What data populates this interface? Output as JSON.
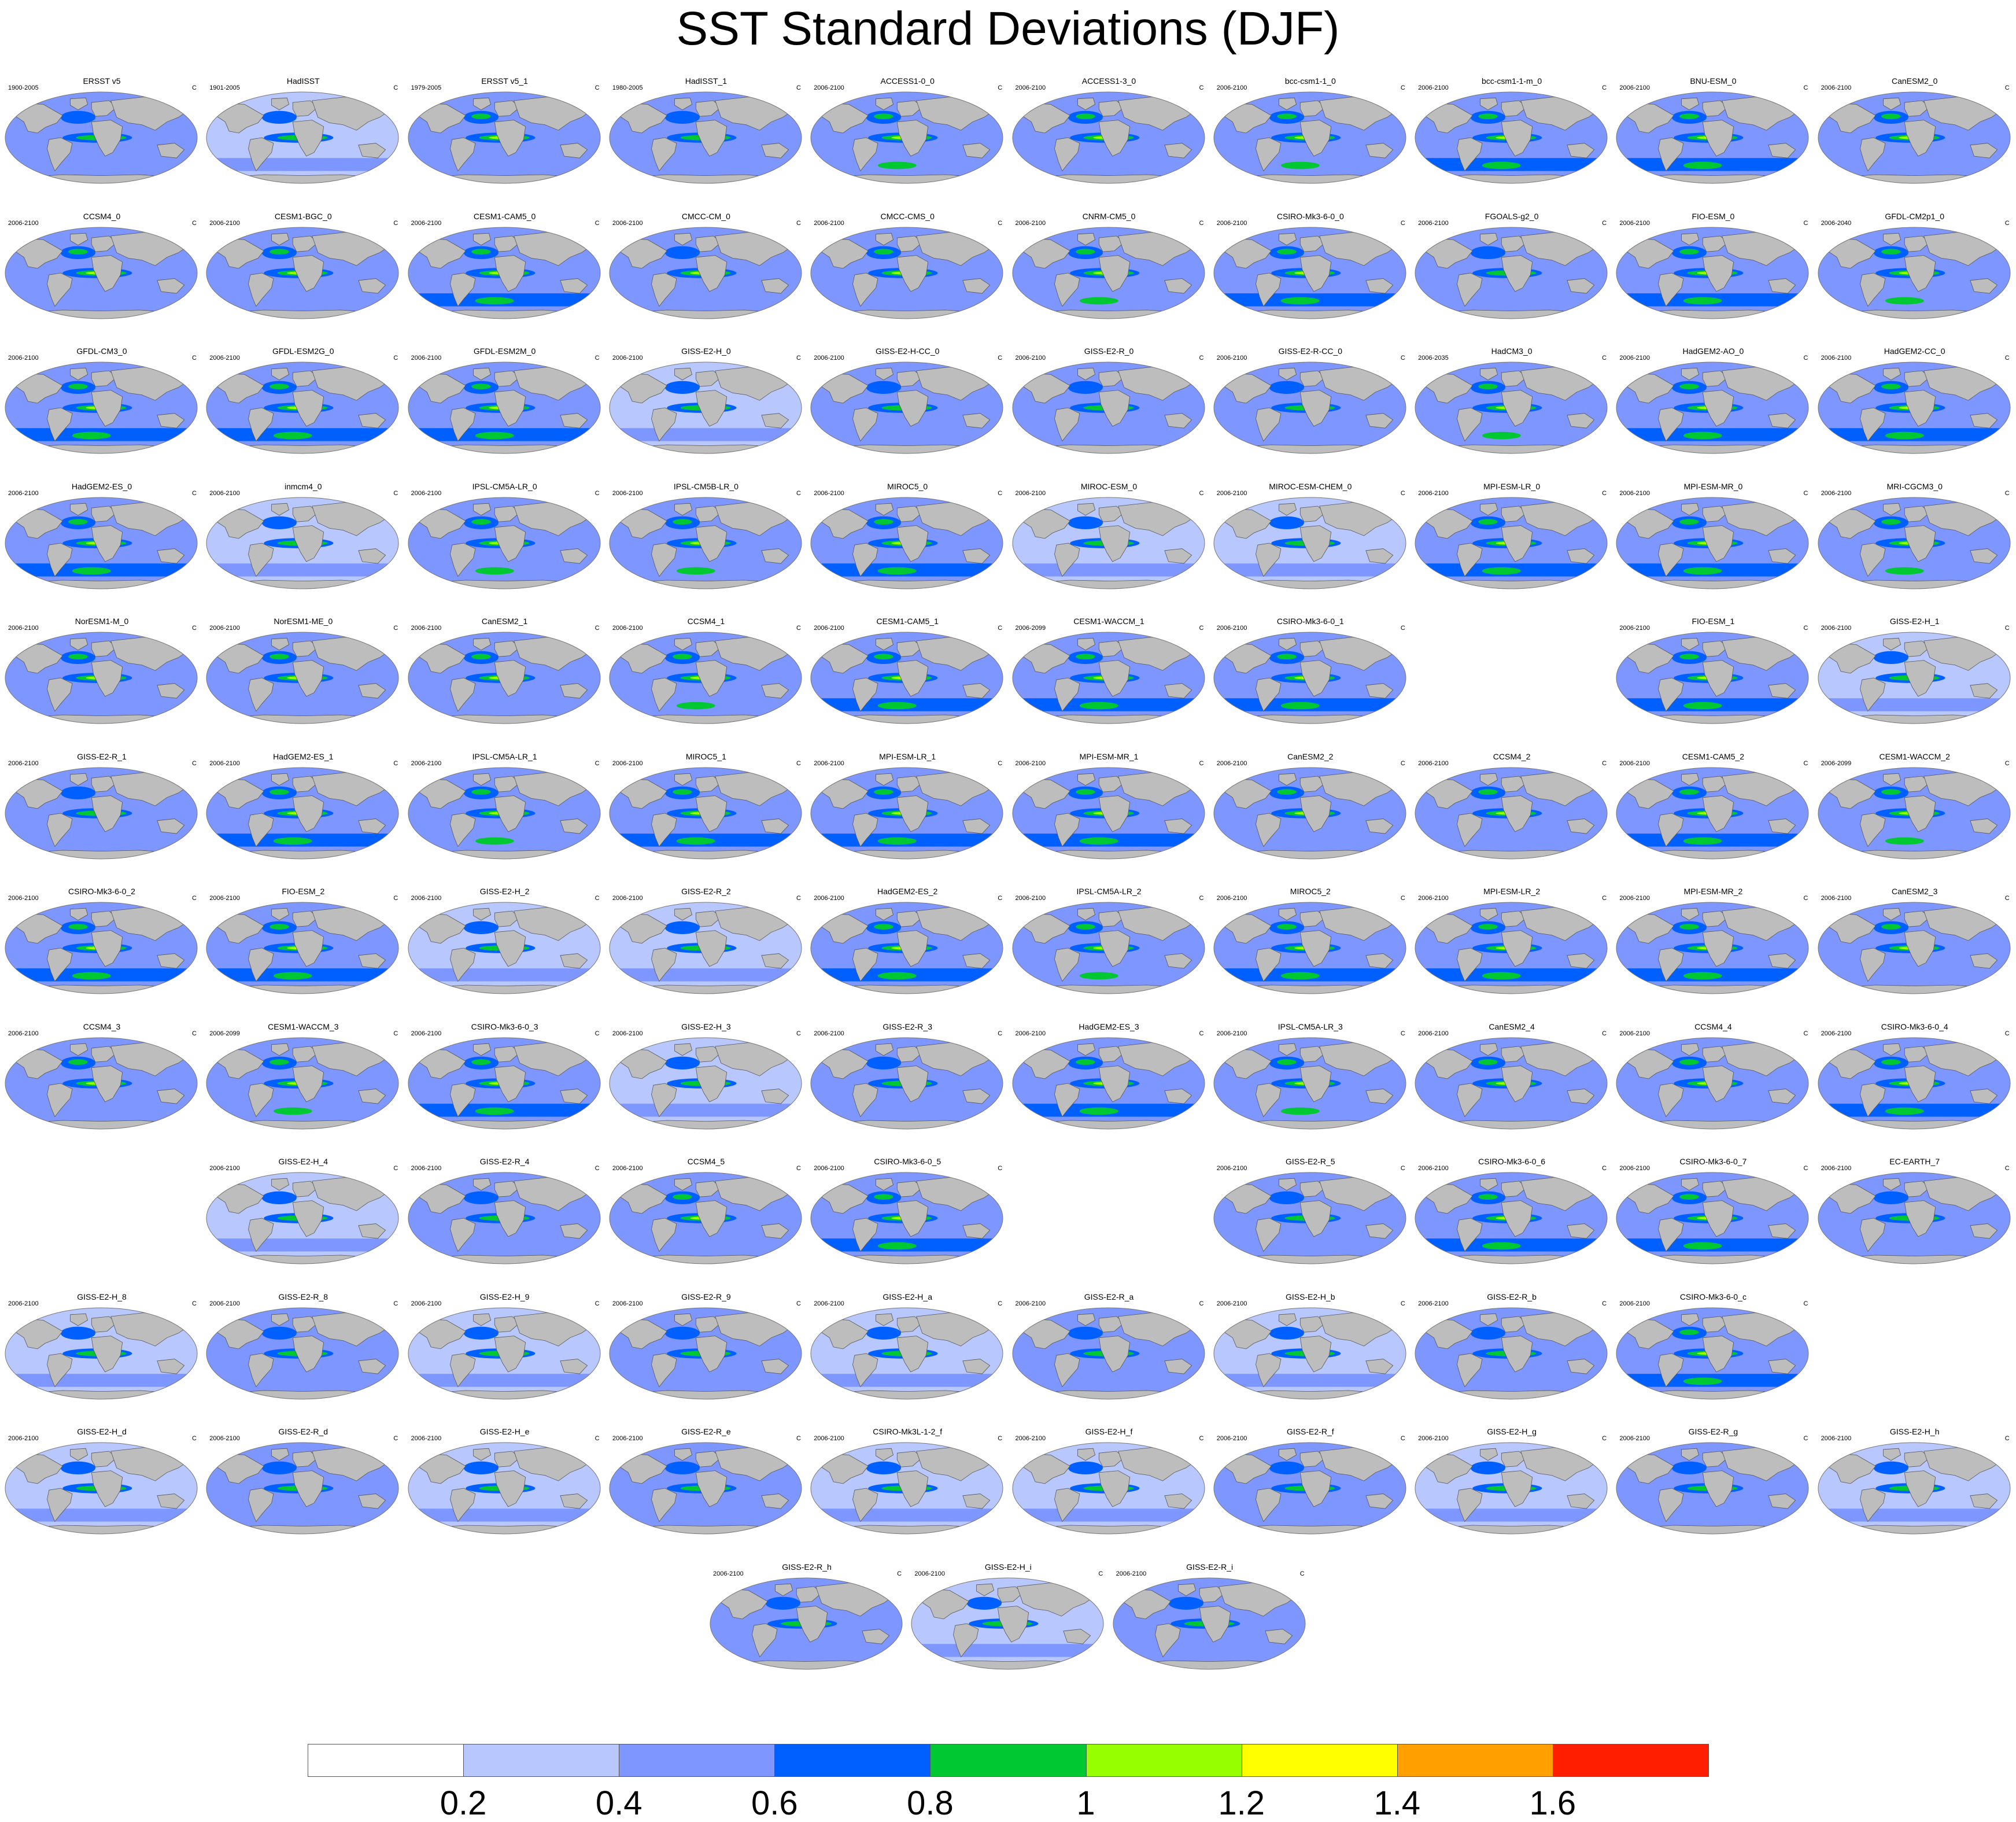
{
  "title": "SST Standard Deviations (DJF)",
  "unit": "C",
  "colors": {
    "land": "#bdbdbd",
    "coast": "#555555"
  },
  "colorbar": {
    "colors": [
      "#ffffff",
      "#b8c8ff",
      "#7e96ff",
      "#0060ff",
      "#00c832",
      "#96ff00",
      "#ffff00",
      "#ffa000",
      "#ff1e00"
    ],
    "labels": [
      "0.2",
      "0.4",
      "0.6",
      "0.8",
      "1",
      "1.2",
      "1.4",
      "1.6"
    ]
  },
  "panels": [
    {
      "row": 0,
      "col": 0,
      "name": "ERSST v5",
      "period": "1900-2005",
      "unit": "C",
      "intensity": 0.45
    },
    {
      "row": 0,
      "col": 1,
      "name": "HadISST",
      "period": "1901-2005",
      "unit": "C",
      "intensity": 0.3
    },
    {
      "row": 0,
      "col": 2,
      "name": "ERSST v5_1",
      "period": "1979-2005",
      "unit": "C",
      "intensity": 0.55
    },
    {
      "row": 0,
      "col": 3,
      "name": "HadISST_1",
      "period": "1980-2005",
      "unit": "C",
      "intensity": 0.45
    },
    {
      "row": 0,
      "col": 4,
      "name": "ACCESS1-0_0",
      "period": "2006-2100",
      "unit": "C",
      "intensity": 0.6
    },
    {
      "row": 0,
      "col": 5,
      "name": "ACCESS1-3_0",
      "period": "2006-2100",
      "unit": "C",
      "intensity": 0.55
    },
    {
      "row": 0,
      "col": 6,
      "name": "bcc-csm1-1_0",
      "period": "2006-2100",
      "unit": "C",
      "intensity": 0.6
    },
    {
      "row": 0,
      "col": 7,
      "name": "bcc-csm1-1-m_0",
      "period": "2006-2100",
      "unit": "C",
      "intensity": 0.7
    },
    {
      "row": 0,
      "col": 8,
      "name": "BNU-ESM_0",
      "period": "2006-2100",
      "unit": "C",
      "intensity": 0.8
    },
    {
      "row": 0,
      "col": 9,
      "name": "CanESM2_0",
      "period": "2006-2100",
      "unit": "C",
      "intensity": 0.55
    },
    {
      "row": 1,
      "col": 0,
      "name": "CCSM4_0",
      "period": "2006-2100",
      "unit": "C",
      "intensity": 0.55
    },
    {
      "row": 1,
      "col": 1,
      "name": "CESM1-BGC_0",
      "period": "2006-2100",
      "unit": "C",
      "intensity": 0.55
    },
    {
      "row": 1,
      "col": 2,
      "name": "CESM1-CAM5_0",
      "period": "2006-2100",
      "unit": "C",
      "intensity": 0.75
    },
    {
      "row": 1,
      "col": 3,
      "name": "CMCC-CM_0",
      "period": "2006-2100",
      "unit": "C",
      "intensity": 0.5
    },
    {
      "row": 1,
      "col": 4,
      "name": "CMCC-CMS_0",
      "period": "2006-2100",
      "unit": "C",
      "intensity": 0.55
    },
    {
      "row": 1,
      "col": 5,
      "name": "CNRM-CM5_0",
      "period": "2006-2100",
      "unit": "C",
      "intensity": 0.6
    },
    {
      "row": 1,
      "col": 6,
      "name": "CSIRO-Mk3-6-0_0",
      "period": "2006-2100",
      "unit": "C",
      "intensity": 0.7
    },
    {
      "row": 1,
      "col": 7,
      "name": "FGOALS-g2_0",
      "period": "2006-2100",
      "unit": "C",
      "intensity": 0.45
    },
    {
      "row": 1,
      "col": 8,
      "name": "FIO-ESM_0",
      "period": "2006-2100",
      "unit": "C",
      "intensity": 0.75
    },
    {
      "row": 1,
      "col": 9,
      "name": "GFDL-CM2p1_0",
      "period": "2006-2040",
      "unit": "C",
      "intensity": 0.6
    },
    {
      "row": 2,
      "col": 0,
      "name": "GFDL-CM3_0",
      "period": "2006-2100",
      "unit": "C",
      "intensity": 0.75
    },
    {
      "row": 2,
      "col": 1,
      "name": "GFDL-ESM2G_0",
      "period": "2006-2100",
      "unit": "C",
      "intensity": 0.65
    },
    {
      "row": 2,
      "col": 2,
      "name": "GFDL-ESM2M_0",
      "period": "2006-2100",
      "unit": "C",
      "intensity": 0.7
    },
    {
      "row": 2,
      "col": 3,
      "name": "GISS-E2-H_0",
      "period": "2006-2100",
      "unit": "C",
      "intensity": 0.35
    },
    {
      "row": 2,
      "col": 4,
      "name": "GISS-E2-H-CC_0",
      "period": "2006-2100",
      "unit": "C",
      "intensity": 0.4
    },
    {
      "row": 2,
      "col": 5,
      "name": "GISS-E2-R_0",
      "period": "2006-2100",
      "unit": "C",
      "intensity": 0.4
    },
    {
      "row": 2,
      "col": 6,
      "name": "GISS-E2-R-CC_0",
      "period": "2006-2100",
      "unit": "C",
      "intensity": 0.4
    },
    {
      "row": 2,
      "col": 7,
      "name": "HadCM3_0",
      "period": "2006-2035",
      "unit": "C",
      "intensity": 0.6
    },
    {
      "row": 2,
      "col": 8,
      "name": "HadGEM2-AO_0",
      "period": "2006-2100",
      "unit": "C",
      "intensity": 0.65
    },
    {
      "row": 2,
      "col": 9,
      "name": "HadGEM2-CC_0",
      "period": "2006-2100",
      "unit": "C",
      "intensity": 0.65
    },
    {
      "row": 3,
      "col": 0,
      "name": "HadGEM2-ES_0",
      "period": "2006-2100",
      "unit": "C",
      "intensity": 0.65
    },
    {
      "row": 3,
      "col": 1,
      "name": "inmcm4_0",
      "period": "2006-2100",
      "unit": "C",
      "intensity": 0.25
    },
    {
      "row": 3,
      "col": 2,
      "name": "IPSL-CM5A-LR_0",
      "period": "2006-2100",
      "unit": "C",
      "intensity": 0.6
    },
    {
      "row": 3,
      "col": 3,
      "name": "IPSL-CM5B-LR_0",
      "period": "2006-2100",
      "unit": "C",
      "intensity": 0.6
    },
    {
      "row": 3,
      "col": 4,
      "name": "MIROC5_0",
      "period": "2006-2100",
      "unit": "C",
      "intensity": 0.85
    },
    {
      "row": 3,
      "col": 5,
      "name": "MIROC-ESM_0",
      "period": "2006-2100",
      "unit": "C",
      "intensity": 0.35
    },
    {
      "row": 3,
      "col": 6,
      "name": "MIROC-ESM-CHEM_0",
      "period": "2006-2100",
      "unit": "C",
      "intensity": 0.35
    },
    {
      "row": 3,
      "col": 7,
      "name": "MPI-ESM-LR_0",
      "period": "2006-2100",
      "unit": "C",
      "intensity": 0.7
    },
    {
      "row": 3,
      "col": 8,
      "name": "MPI-ESM-MR_0",
      "period": "2006-2100",
      "unit": "C",
      "intensity": 0.65
    },
    {
      "row": 3,
      "col": 9,
      "name": "MRI-CGCM3_0",
      "period": "2006-2100",
      "unit": "C",
      "intensity": 0.6
    },
    {
      "row": 4,
      "col": 0,
      "name": "NorESM1-M_0",
      "period": "2006-2100",
      "unit": "C",
      "intensity": 0.55
    },
    {
      "row": 4,
      "col": 1,
      "name": "NorESM1-ME_0",
      "period": "2006-2100",
      "unit": "C",
      "intensity": 0.55
    },
    {
      "row": 4,
      "col": 2,
      "name": "CanESM2_1",
      "period": "2006-2100",
      "unit": "C",
      "intensity": 0.55
    },
    {
      "row": 4,
      "col": 3,
      "name": "CCSM4_1",
      "period": "2006-2100",
      "unit": "C",
      "intensity": 0.6
    },
    {
      "row": 4,
      "col": 4,
      "name": "CESM1-CAM5_1",
      "period": "2006-2100",
      "unit": "C",
      "intensity": 0.7
    },
    {
      "row": 4,
      "col": 5,
      "name": "CESM1-WACCM_1",
      "period": "2006-2099",
      "unit": "C",
      "intensity": 0.7
    },
    {
      "row": 4,
      "col": 6,
      "name": "CSIRO-Mk3-6-0_1",
      "period": "2006-2100",
      "unit": "C",
      "intensity": 0.7
    },
    {
      "row": 4,
      "col": 8,
      "name": "FIO-ESM_1",
      "period": "2006-2100",
      "unit": "C",
      "intensity": 0.75
    },
    {
      "row": 4,
      "col": 9,
      "name": "GISS-E2-H_1",
      "period": "2006-2100",
      "unit": "C",
      "intensity": 0.35
    },
    {
      "row": 5,
      "col": 0,
      "name": "GISS-E2-R_1",
      "period": "2006-2100",
      "unit": "C",
      "intensity": 0.4
    },
    {
      "row": 5,
      "col": 1,
      "name": "HadGEM2-ES_1",
      "period": "2006-2100",
      "unit": "C",
      "intensity": 0.65
    },
    {
      "row": 5,
      "col": 2,
      "name": "IPSL-CM5A-LR_1",
      "period": "2006-2100",
      "unit": "C",
      "intensity": 0.6
    },
    {
      "row": 5,
      "col": 3,
      "name": "MIROC5_1",
      "period": "2006-2100",
      "unit": "C",
      "intensity": 0.75
    },
    {
      "row": 5,
      "col": 4,
      "name": "MPI-ESM-LR_1",
      "period": "2006-2100",
      "unit": "C",
      "intensity": 0.7
    },
    {
      "row": 5,
      "col": 5,
      "name": "MPI-ESM-MR_1",
      "period": "2006-2100",
      "unit": "C",
      "intensity": 0.65
    },
    {
      "row": 5,
      "col": 6,
      "name": "CanESM2_2",
      "period": "2006-2100",
      "unit": "C",
      "intensity": 0.55
    },
    {
      "row": 5,
      "col": 7,
      "name": "CCSM4_2",
      "period": "2006-2100",
      "unit": "C",
      "intensity": 0.55
    },
    {
      "row": 5,
      "col": 8,
      "name": "CESM1-CAM5_2",
      "period": "2006-2100",
      "unit": "C",
      "intensity": 0.7
    },
    {
      "row": 5,
      "col": 9,
      "name": "CESM1-WACCM_2",
      "period": "2006-2099",
      "unit": "C",
      "intensity": 0.6
    },
    {
      "row": 6,
      "col": 0,
      "name": "CSIRO-Mk3-6-0_2",
      "period": "2006-2100",
      "unit": "C",
      "intensity": 0.75
    },
    {
      "row": 6,
      "col": 1,
      "name": "FIO-ESM_2",
      "period": "2006-2100",
      "unit": "C",
      "intensity": 0.75
    },
    {
      "row": 6,
      "col": 2,
      "name": "GISS-E2-H_2",
      "period": "2006-2100",
      "unit": "C",
      "intensity": 0.35
    },
    {
      "row": 6,
      "col": 3,
      "name": "GISS-E2-R_2",
      "period": "2006-2100",
      "unit": "C",
      "intensity": 0.35
    },
    {
      "row": 6,
      "col": 4,
      "name": "HadGEM2-ES_2",
      "period": "2006-2100",
      "unit": "C",
      "intensity": 0.65
    },
    {
      "row": 6,
      "col": 5,
      "name": "IPSL-CM5A-LR_2",
      "period": "2006-2100",
      "unit": "C",
      "intensity": 0.6
    },
    {
      "row": 6,
      "col": 6,
      "name": "MIROC5_2",
      "period": "2006-2100",
      "unit": "C",
      "intensity": 0.85
    },
    {
      "row": 6,
      "col": 7,
      "name": "MPI-ESM-LR_2",
      "period": "2006-2100",
      "unit": "C",
      "intensity": 0.7
    },
    {
      "row": 6,
      "col": 8,
      "name": "MPI-ESM-MR_2",
      "period": "2006-2100",
      "unit": "C",
      "intensity": 0.65
    },
    {
      "row": 6,
      "col": 9,
      "name": "CanESM2_3",
      "period": "2006-2100",
      "unit": "C",
      "intensity": 0.55
    },
    {
      "row": 7,
      "col": 0,
      "name": "CCSM4_3",
      "period": "2006-2100",
      "unit": "C",
      "intensity": 0.55
    },
    {
      "row": 7,
      "col": 1,
      "name": "CESM1-WACCM_3",
      "period": "2006-2099",
      "unit": "C",
      "intensity": 0.6
    },
    {
      "row": 7,
      "col": 2,
      "name": "CSIRO-Mk3-6-0_3",
      "period": "2006-2100",
      "unit": "C",
      "intensity": 0.7
    },
    {
      "row": 7,
      "col": 3,
      "name": "GISS-E2-H_3",
      "period": "2006-2100",
      "unit": "C",
      "intensity": 0.35
    },
    {
      "row": 7,
      "col": 4,
      "name": "GISS-E2-R_3",
      "period": "2006-2100",
      "unit": "C",
      "intensity": 0.4
    },
    {
      "row": 7,
      "col": 5,
      "name": "HadGEM2-ES_3",
      "period": "2006-2100",
      "unit": "C",
      "intensity": 0.65
    },
    {
      "row": 7,
      "col": 6,
      "name": "IPSL-CM5A-LR_3",
      "period": "2006-2100",
      "unit": "C",
      "intensity": 0.6
    },
    {
      "row": 7,
      "col": 7,
      "name": "CanESM2_4",
      "period": "2006-2100",
      "unit": "C",
      "intensity": 0.55
    },
    {
      "row": 7,
      "col": 8,
      "name": "CCSM4_4",
      "period": "2006-2100",
      "unit": "C",
      "intensity": 0.55
    },
    {
      "row": 7,
      "col": 9,
      "name": "CSIRO-Mk3-6-0_4",
      "period": "2006-2100",
      "unit": "C",
      "intensity": 0.7
    },
    {
      "row": 8,
      "col": 1,
      "name": "GISS-E2-H_4",
      "period": "2006-2100",
      "unit": "C",
      "intensity": 0.35
    },
    {
      "row": 8,
      "col": 2,
      "name": "GISS-E2-R_4",
      "period": "2006-2100",
      "unit": "C",
      "intensity": 0.4
    },
    {
      "row": 8,
      "col": 3,
      "name": "CCSM4_5",
      "period": "2006-2100",
      "unit": "C",
      "intensity": 0.55
    },
    {
      "row": 8,
      "col": 4,
      "name": "CSIRO-Mk3-6-0_5",
      "period": "2006-2100",
      "unit": "C",
      "intensity": 0.7
    },
    {
      "row": 8,
      "col": 6,
      "name": "GISS-E2-R_5",
      "period": "2006-2100",
      "unit": "C",
      "intensity": 0.4
    },
    {
      "row": 8,
      "col": 7,
      "name": "CSIRO-Mk3-6-0_6",
      "period": "2006-2100",
      "unit": "C",
      "intensity": 0.7
    },
    {
      "row": 8,
      "col": 8,
      "name": "CSIRO-Mk3-6-0_7",
      "period": "2006-2100",
      "unit": "C",
      "intensity": 0.7
    },
    {
      "row": 8,
      "col": 9,
      "name": "EC-EARTH_7",
      "period": "2006-2100",
      "unit": "C",
      "intensity": 0.45
    },
    {
      "row": 9,
      "col": 0,
      "name": "GISS-E2-H_8",
      "period": "2006-2100",
      "unit": "C",
      "intensity": 0.35
    },
    {
      "row": 9,
      "col": 1,
      "name": "GISS-E2-R_8",
      "period": "2006-2100",
      "unit": "C",
      "intensity": 0.4
    },
    {
      "row": 9,
      "col": 2,
      "name": "GISS-E2-H_9",
      "period": "2006-2100",
      "unit": "C",
      "intensity": 0.35
    },
    {
      "row": 9,
      "col": 3,
      "name": "GISS-E2-R_9",
      "period": "2006-2100",
      "unit": "C",
      "intensity": 0.4
    },
    {
      "row": 9,
      "col": 4,
      "name": "GISS-E2-H_a",
      "period": "2006-2100",
      "unit": "C",
      "intensity": 0.35
    },
    {
      "row": 9,
      "col": 5,
      "name": "GISS-E2-R_a",
      "period": "2006-2100",
      "unit": "C",
      "intensity": 0.4
    },
    {
      "row": 9,
      "col": 6,
      "name": "GISS-E2-H_b",
      "period": "2006-2100",
      "unit": "C",
      "intensity": 0.35
    },
    {
      "row": 9,
      "col": 7,
      "name": "GISS-E2-R_b",
      "period": "2006-2100",
      "unit": "C",
      "intensity": 0.4
    },
    {
      "row": 9,
      "col": 8,
      "name": "CSIRO-Mk3-6-0_c",
      "period": "2006-2100",
      "unit": "C",
      "intensity": 0.7
    },
    {
      "row": 10,
      "col": 0,
      "name": "GISS-E2-H_d",
      "period": "2006-2100",
      "unit": "C",
      "intensity": 0.35
    },
    {
      "row": 10,
      "col": 1,
      "name": "GISS-E2-R_d",
      "period": "2006-2100",
      "unit": "C",
      "intensity": 0.4
    },
    {
      "row": 10,
      "col": 2,
      "name": "GISS-E2-H_e",
      "period": "2006-2100",
      "unit": "C",
      "intensity": 0.35
    },
    {
      "row": 10,
      "col": 3,
      "name": "GISS-E2-R_e",
      "period": "2006-2100",
      "unit": "C",
      "intensity": 0.4
    },
    {
      "row": 10,
      "col": 4,
      "name": "CSIRO-Mk3L-1-2_f",
      "period": "2006-2100",
      "unit": "C",
      "intensity": 0.3
    },
    {
      "row": 10,
      "col": 5,
      "name": "GISS-E2-H_f",
      "period": "2006-2100",
      "unit": "C",
      "intensity": 0.35
    },
    {
      "row": 10,
      "col": 6,
      "name": "GISS-E2-R_f",
      "period": "2006-2100",
      "unit": "C",
      "intensity": 0.4
    },
    {
      "row": 10,
      "col": 7,
      "name": "GISS-E2-H_g",
      "period": "2006-2100",
      "unit": "C",
      "intensity": 0.35
    },
    {
      "row": 10,
      "col": 8,
      "name": "GISS-E2-R_g",
      "period": "2006-2100",
      "unit": "C",
      "intensity": 0.4
    },
    {
      "row": 10,
      "col": 9,
      "name": "GISS-E2-H_h",
      "period": "2006-2100",
      "unit": "C",
      "intensity": 0.35
    },
    {
      "row": 11,
      "col": 3.5,
      "name": "GISS-E2-R_h",
      "period": "2006-2100",
      "unit": "C",
      "intensity": 0.4
    },
    {
      "row": 11,
      "col": 4.5,
      "name": "GISS-E2-H_i",
      "period": "2006-2100",
      "unit": "C",
      "intensity": 0.35
    },
    {
      "row": 11,
      "col": 5.5,
      "name": "GISS-E2-R_i",
      "period": "2006-2100",
      "unit": "C",
      "intensity": 0.4
    }
  ]
}
